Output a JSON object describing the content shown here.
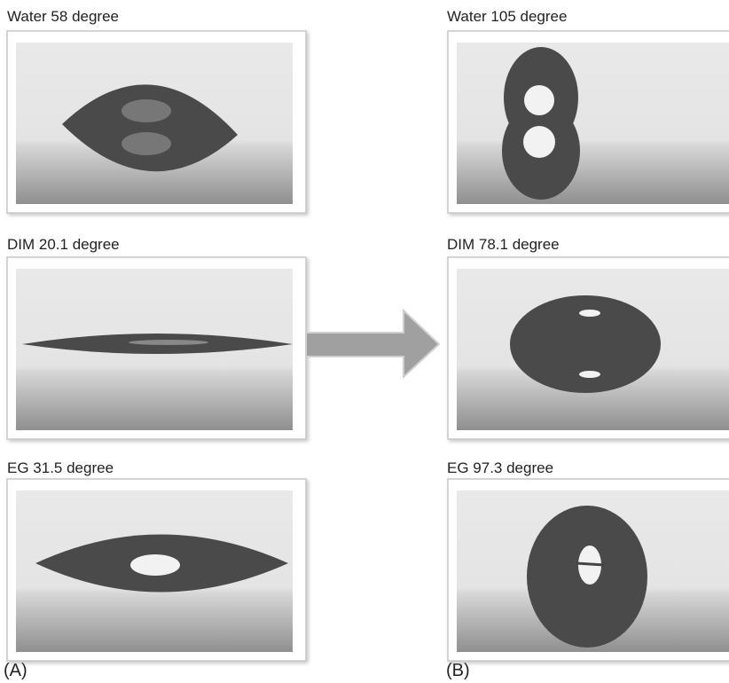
{
  "panels": [
    {
      "label": "(A)",
      "images": [
        {
          "caption": "Water 58 degree"
        },
        {
          "caption": "DIM 20.1 degree"
        },
        {
          "caption": "EG 31.5 degree"
        }
      ]
    },
    {
      "label": "(B)",
      "images": [
        {
          "caption": "Water 105 degree"
        },
        {
          "caption": "DIM 78.1 degree"
        },
        {
          "caption": "EG 97.3 degree"
        }
      ]
    }
  ]
}
